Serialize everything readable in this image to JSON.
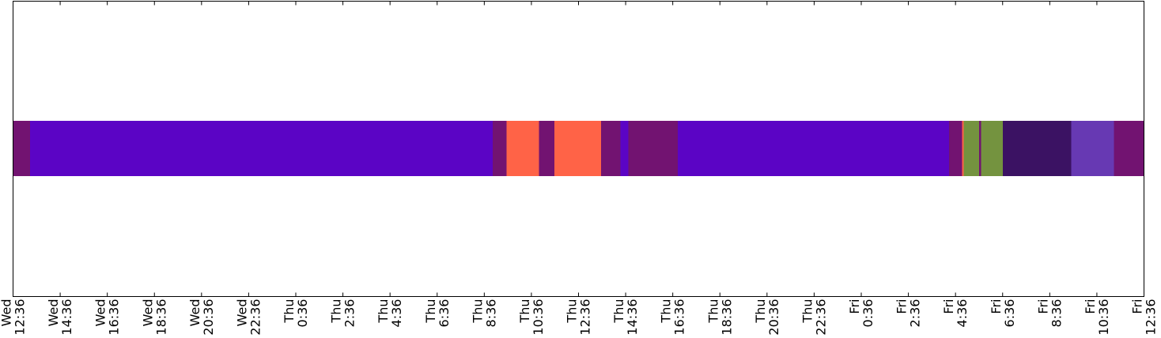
{
  "chart_data": {
    "type": "timeline",
    "title": "",
    "xlabel": "",
    "ylabel": "",
    "x_range": [
      "Wed 12:36",
      "Fri 12:36"
    ],
    "grid": false,
    "legend": "none",
    "ticks": [
      {
        "day": "Wed",
        "time": "12:36",
        "hours": 0
      },
      {
        "day": "Wed",
        "time": "14:36",
        "hours": 2
      },
      {
        "day": "Wed",
        "time": "16:36",
        "hours": 4
      },
      {
        "day": "Wed",
        "time": "18:36",
        "hours": 6
      },
      {
        "day": "Wed",
        "time": "20:36",
        "hours": 8
      },
      {
        "day": "Wed",
        "time": "22:36",
        "hours": 10
      },
      {
        "day": "Thu",
        "time": "0:36",
        "hours": 12
      },
      {
        "day": "Thu",
        "time": "2:36",
        "hours": 14
      },
      {
        "day": "Thu",
        "time": "4:36",
        "hours": 16
      },
      {
        "day": "Thu",
        "time": "6:36",
        "hours": 18
      },
      {
        "day": "Thu",
        "time": "8:36",
        "hours": 20
      },
      {
        "day": "Thu",
        "time": "10:36",
        "hours": 22
      },
      {
        "day": "Thu",
        "time": "12:36",
        "hours": 24
      },
      {
        "day": "Thu",
        "time": "14:36",
        "hours": 26
      },
      {
        "day": "Thu",
        "time": "16:36",
        "hours": 28
      },
      {
        "day": "Thu",
        "time": "18:36",
        "hours": 30
      },
      {
        "day": "Thu",
        "time": "20:36",
        "hours": 32
      },
      {
        "day": "Thu",
        "time": "22:36",
        "hours": 34
      },
      {
        "day": "Fri",
        "time": "0:36",
        "hours": 36
      },
      {
        "day": "Fri",
        "time": "2:36",
        "hours": 38
      },
      {
        "day": "Fri",
        "time": "4:36",
        "hours": 40
      },
      {
        "day": "Fri",
        "time": "6:36",
        "hours": 42
      },
      {
        "day": "Fri",
        "time": "8:36",
        "hours": 44
      },
      {
        "day": "Fri",
        "time": "10:36",
        "hours": 46
      },
      {
        "day": "Fri",
        "time": "12:36",
        "hours": 48
      }
    ],
    "segments": [
      {
        "start": 0.0,
        "end": 0.72,
        "color": "#721371"
      },
      {
        "start": 0.72,
        "end": 20.36,
        "color": "#5B04C5"
      },
      {
        "start": 20.36,
        "end": 20.95,
        "color": "#721371"
      },
      {
        "start": 20.95,
        "end": 22.32,
        "color": "#FF6347"
      },
      {
        "start": 22.32,
        "end": 22.98,
        "color": "#721371"
      },
      {
        "start": 22.98,
        "end": 24.95,
        "color": "#FF6347"
      },
      {
        "start": 24.95,
        "end": 25.78,
        "color": "#721371"
      },
      {
        "start": 25.78,
        "end": 26.12,
        "color": "#5B04C5"
      },
      {
        "start": 26.12,
        "end": 28.22,
        "color": "#721371"
      },
      {
        "start": 28.22,
        "end": 39.72,
        "color": "#5B04C5"
      },
      {
        "start": 39.72,
        "end": 40.28,
        "color": "#721371"
      },
      {
        "start": 40.28,
        "end": 40.35,
        "color": "#FF6347"
      },
      {
        "start": 40.35,
        "end": 41.0,
        "color": "#74933F"
      },
      {
        "start": 41.0,
        "end": 41.08,
        "color": "#721371"
      },
      {
        "start": 41.08,
        "end": 42.0,
        "color": "#74933F"
      },
      {
        "start": 42.0,
        "end": 44.92,
        "color": "#3B1263"
      },
      {
        "start": 44.92,
        "end": 46.73,
        "color": "#6739B3"
      },
      {
        "start": 46.73,
        "end": 48.0,
        "color": "#721371"
      }
    ]
  }
}
